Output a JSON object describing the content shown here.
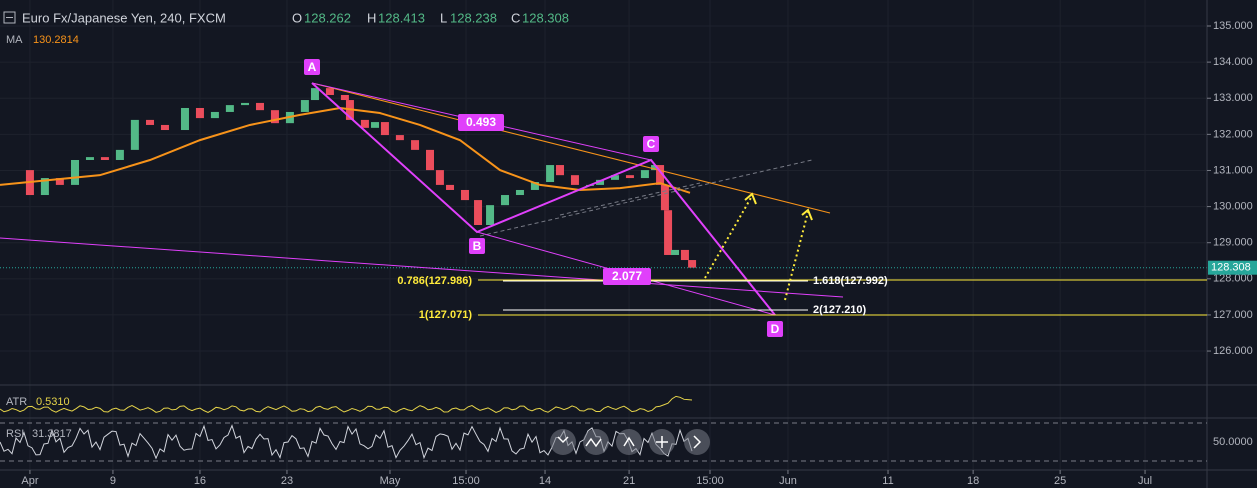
{
  "header": {
    "symbol": "Euro Fx/Japanese Yen, 240, FXCM",
    "open_label": "O",
    "open": "128.262",
    "high_label": "H",
    "high": "128.413",
    "low_label": "L",
    "low": "128.238",
    "close_label": "C",
    "close": "128.308"
  },
  "indicators": {
    "ma_label": "MA",
    "ma_value": "130.2814",
    "atr_label": "ATR",
    "atr_value": "0.5310",
    "rsi_label": "RSI",
    "rsi_value": "31.3817",
    "rsi_tick": "50.0000"
  },
  "annotations": {
    "a": "A",
    "b": "B",
    "c": "C",
    "d": "D",
    "ratio_bc": "0.493",
    "ratio_cd": "2.077",
    "fib_786": "0.786(127.986)",
    "fib_1": "1(127.071)",
    "ext_1618": "1.618(127.992)",
    "ext_2": "2(127.210)"
  },
  "chart_data": {
    "type": "candlestick",
    "up_color": "#53b987",
    "down_color": "#eb4d5c",
    "x": [
      -1.72,
      0,
      0.86,
      1.72,
      2.59,
      3.45,
      4.31,
      5.17,
      6.03,
      6.9,
      7.76,
      8.91,
      9.77,
      10.63,
      11.49,
      12.36,
      13.22,
      14.08,
      14.94,
      15.8,
      16.38,
      17.24,
      18.1,
      18.39,
      19.25,
      19.83,
      20.4,
      21.26,
      22.13,
      22.99,
      23.56,
      24.14,
      25,
      25.75,
      26.44,
      27.3,
      28.16,
      29.02,
      29.89,
      30.46,
      31.32,
      32.18,
      32.76,
      33.62,
      34.48,
      35.34,
      35.92,
      36.21,
      36.49,
      36.67,
      37.07,
      37.64,
      38.05
    ],
    "values": [
      131.01,
      130.32,
      130.79,
      130.6,
      131.29,
      131.37,
      131.29,
      131.57,
      132.4,
      132.26,
      132.12,
      132.73,
      132.45,
      132.62,
      132.81,
      132.87,
      132.67,
      132.31,
      132.62,
      132.95,
      133.28,
      133.09,
      132.95,
      132.4,
      132.18,
      132.34,
      131.98,
      131.84,
      131.57,
      131.01,
      130.6,
      130.46,
      130.18,
      129.49,
      130.04,
      130.32,
      130.46,
      130.68,
      131.15,
      130.87,
      130.6,
      130.6,
      130.74,
      130.87,
      130.79,
      131.01,
      131.15,
      130.6,
      129.9,
      128.66,
      128.8,
      128.52,
      128.31
    ],
    "ma": {
      "color": "#f7931a",
      "x": [
        -1.72,
        4.02,
        6.9,
        9.77,
        12.64,
        15.52,
        17.82,
        20.11,
        22.41,
        24.71,
        27.01,
        29.31,
        31.61,
        33.91,
        36.21,
        37.93
      ],
      "values": [
        130.6,
        130.87,
        131.29,
        131.84,
        132.26,
        132.54,
        132.73,
        132.59,
        132.26,
        131.84,
        131.01,
        130.6,
        130.46,
        130.51,
        130.65,
        130.38
      ]
    },
    "xlim": [
      -1.72,
      67.64
    ],
    "ylim": [
      125.06,
      135.72
    ],
    "xticks": [
      {
        "value": 0,
        "label": "Apr"
      },
      {
        "value": 4.77,
        "label": "9"
      },
      {
        "value": 9.77,
        "label": "16"
      },
      {
        "value": 14.77,
        "label": "23"
      },
      {
        "value": 20.69,
        "label": "May"
      },
      {
        "value": 25.06,
        "label": "15:00"
      },
      {
        "value": 29.6,
        "label": "14"
      },
      {
        "value": 34.43,
        "label": "21"
      },
      {
        "value": 39.08,
        "label": "15:00"
      },
      {
        "value": 43.56,
        "label": "Jun"
      },
      {
        "value": 49.31,
        "label": "11"
      },
      {
        "value": 54.2,
        "label": "18"
      },
      {
        "value": 59.2,
        "label": "25"
      },
      {
        "value": 64.08,
        "label": "Jul"
      }
    ],
    "yticks": [
      {
        "value": 135,
        "label": "135.000"
      },
      {
        "value": 134,
        "label": "134.000"
      },
      {
        "value": 133,
        "label": "133.000"
      },
      {
        "value": 132,
        "label": "132.000"
      },
      {
        "value": 131,
        "label": "131.000"
      },
      {
        "value": 130,
        "label": "130.000"
      },
      {
        "value": 129,
        "label": "129.000"
      },
      {
        "value": 128,
        "label": "128.000"
      },
      {
        "value": 127,
        "label": "127.000"
      },
      {
        "value": 126,
        "label": "126.000"
      }
    ],
    "last_price": {
      "value": 128.308,
      "label": "128.308",
      "color": "#26a69a"
    }
  }
}
